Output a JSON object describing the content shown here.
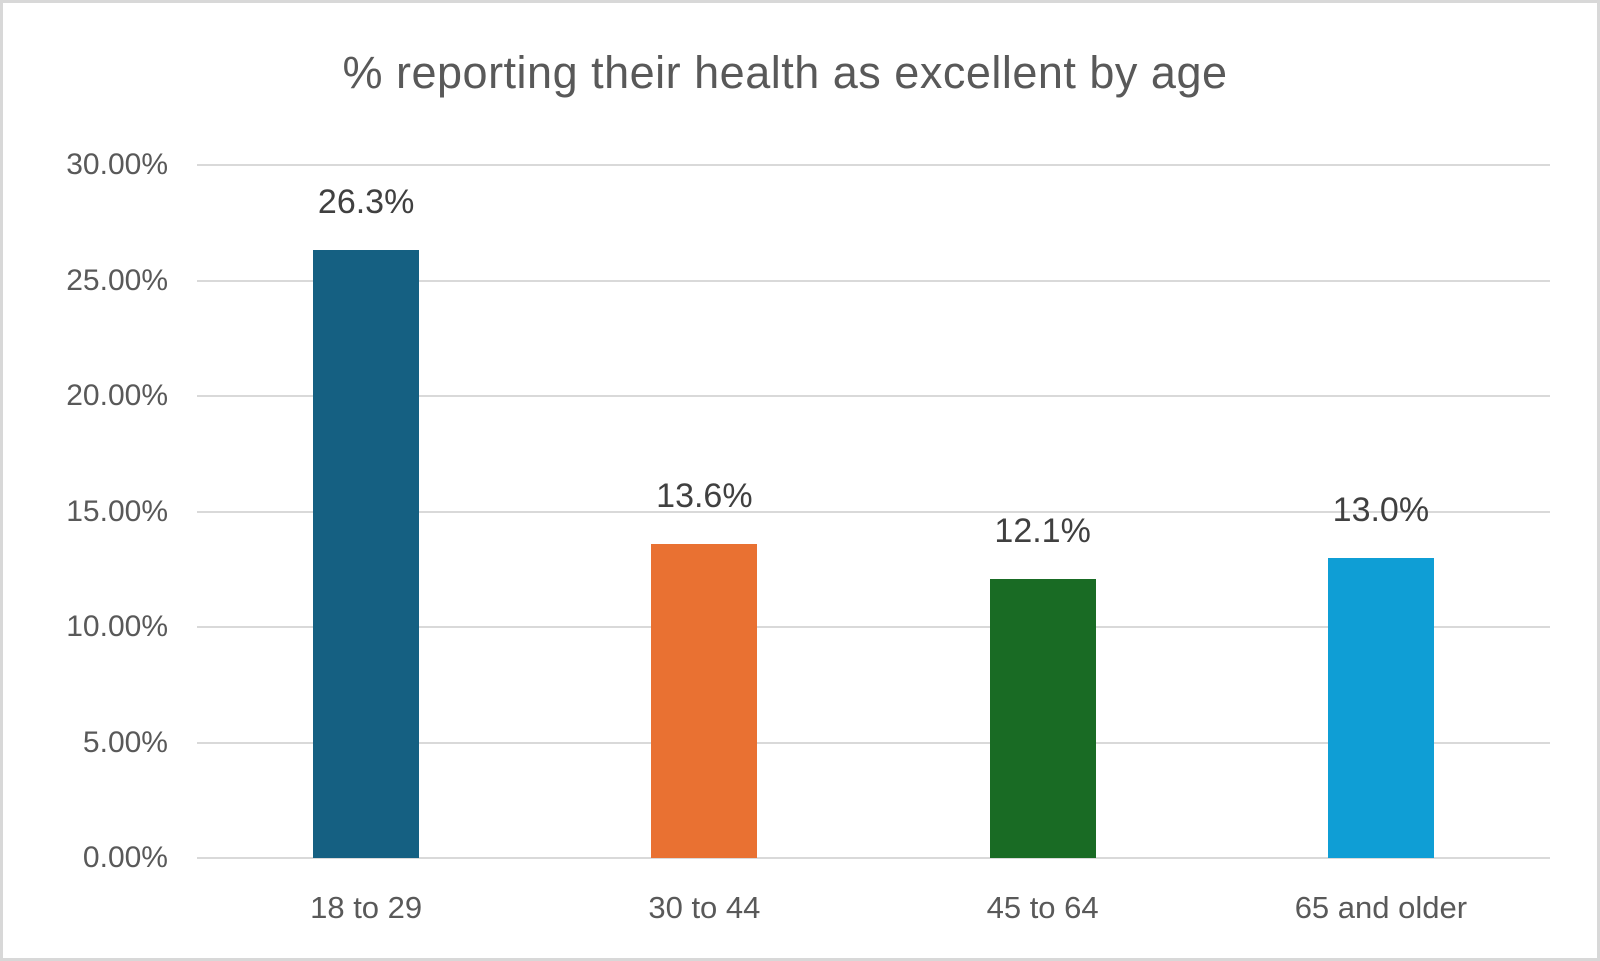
{
  "chart_data": {
    "type": "bar",
    "title": "% reporting their health as excellent by age",
    "categories": [
      "18 to 29",
      "30 to 44",
      "45 to 64",
      "65 and older"
    ],
    "values": [
      26.3,
      13.6,
      12.1,
      13.0
    ],
    "data_labels": [
      "26.3%",
      "13.6%",
      "12.1%",
      "13.0%"
    ],
    "bar_colors": [
      "#156082",
      "#E97132",
      "#196B24",
      "#0F9ED5"
    ],
    "xlabel": "",
    "ylabel": "",
    "ylim": [
      0,
      30
    ],
    "ytick_values": [
      0,
      5,
      10,
      15,
      20,
      25,
      30
    ],
    "ytick_labels": [
      "0.00%",
      "5.00%",
      "10.00%",
      "15.00%",
      "20.00%",
      "25.00%",
      "30.00%"
    ],
    "grid": "horizontal",
    "legend": "none",
    "colors": {
      "title_text": "#595959",
      "axis_text": "#595959",
      "data_label_text": "#404040",
      "gridline": "#D9D9D9",
      "background": "#FFFFFF",
      "frame_border": "#D8D8D8"
    }
  }
}
